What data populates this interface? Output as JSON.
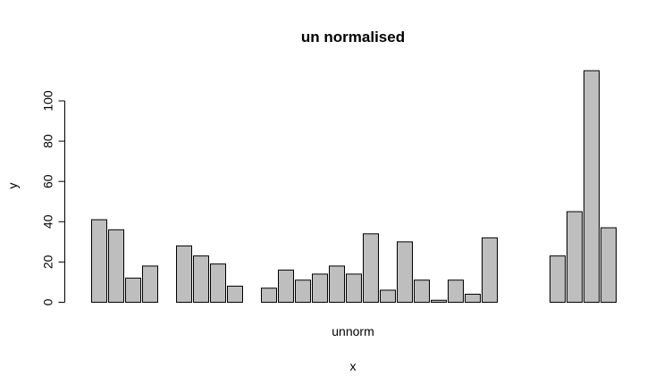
{
  "chart_data": {
    "type": "bar",
    "title": "un normalised",
    "xlabel": "x",
    "ylabel": "y",
    "sublabel": "unnorm",
    "ylim": [
      0,
      115
    ],
    "yticks": [
      0,
      20,
      40,
      60,
      80,
      100
    ],
    "groups": [
      [
        41,
        36,
        12,
        18
      ],
      [
        28,
        23,
        19,
        8
      ],
      [
        7,
        16,
        11,
        14,
        18,
        14,
        34,
        6,
        30,
        11,
        1,
        11,
        4,
        32
      ],
      [
        23,
        45,
        115,
        37
      ]
    ],
    "bar_color": "#bebebe",
    "grid": false,
    "legend": "none"
  }
}
